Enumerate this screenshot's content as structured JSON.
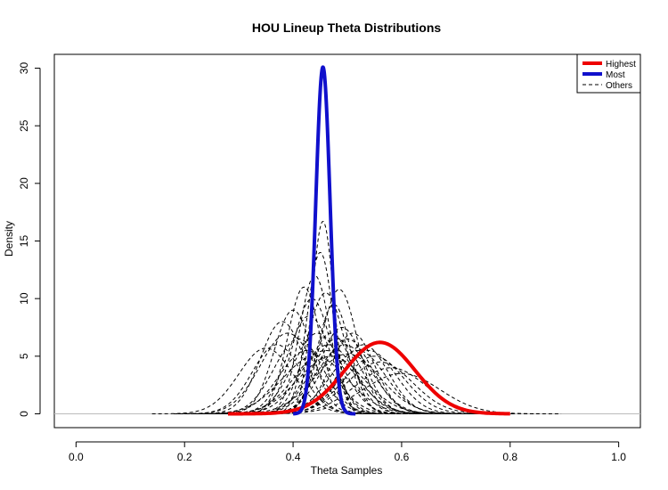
{
  "chart_data": {
    "type": "line",
    "title": "HOU Lineup Theta Distributions",
    "xlabel": "Theta Samples",
    "ylabel": "Density",
    "xlim": [
      -0.04,
      1.04
    ],
    "ylim": [
      -1.2,
      31.2
    ],
    "x_ticks": [
      "0.0",
      "0.2",
      "0.4",
      "0.6",
      "0.8",
      "1.0"
    ],
    "y_ticks": [
      "0",
      "5",
      "10",
      "15",
      "20",
      "25",
      "30"
    ],
    "grid": false,
    "legend": {
      "placement": "top-right",
      "entries": [
        "Highest",
        "Most",
        "Others"
      ]
    },
    "colors": {
      "highest": "#ee0000",
      "most": "#1010cc",
      "others": "#000000",
      "baseline": "#bbbbbb"
    },
    "series": [
      {
        "name": "Highest",
        "kind": "gaussian",
        "mean": 0.56,
        "sd": 0.065,
        "peak": 6.2,
        "range": [
          0.28,
          0.8
        ]
      },
      {
        "name": "Most",
        "kind": "gaussian",
        "mean": 0.455,
        "sd": 0.0133,
        "peak": 30.1,
        "range": [
          0.4,
          0.515
        ]
      },
      {
        "name": "Others",
        "kind": "gaussian_family",
        "curves": [
          [
            0.35,
            0.05,
            5.7
          ],
          [
            0.37,
            0.045,
            6.0
          ],
          [
            0.38,
            0.04,
            8.0
          ],
          [
            0.39,
            0.05,
            7.0
          ],
          [
            0.4,
            0.035,
            9.0
          ],
          [
            0.41,
            0.045,
            6.5
          ],
          [
            0.42,
            0.03,
            11.0
          ],
          [
            0.425,
            0.05,
            5.5
          ],
          [
            0.43,
            0.04,
            8.5
          ],
          [
            0.435,
            0.035,
            10.0
          ],
          [
            0.44,
            0.028,
            12.0
          ],
          [
            0.445,
            0.045,
            7.0
          ],
          [
            0.45,
            0.024,
            14.0
          ],
          [
            0.455,
            0.02,
            16.7
          ],
          [
            0.46,
            0.035,
            10.5
          ],
          [
            0.465,
            0.05,
            6.0
          ],
          [
            0.47,
            0.04,
            7.0
          ],
          [
            0.475,
            0.03,
            9.5
          ],
          [
            0.48,
            0.045,
            6.5
          ],
          [
            0.485,
            0.033,
            10.8
          ],
          [
            0.49,
            0.04,
            7.5
          ],
          [
            0.495,
            0.05,
            6.0
          ],
          [
            0.5,
            0.045,
            6.5
          ],
          [
            0.51,
            0.04,
            7.0
          ],
          [
            0.52,
            0.05,
            5.5
          ],
          [
            0.53,
            0.045,
            6.0
          ],
          [
            0.54,
            0.05,
            5.5
          ],
          [
            0.55,
            0.055,
            5.0
          ],
          [
            0.56,
            0.06,
            4.5
          ],
          [
            0.58,
            0.065,
            4.0
          ],
          [
            0.6,
            0.07,
            3.5
          ],
          [
            0.44,
            0.06,
            5.0
          ],
          [
            0.46,
            0.055,
            5.5
          ],
          [
            0.47,
            0.06,
            5.0
          ],
          [
            0.5,
            0.06,
            5.2
          ]
        ]
      }
    ]
  }
}
